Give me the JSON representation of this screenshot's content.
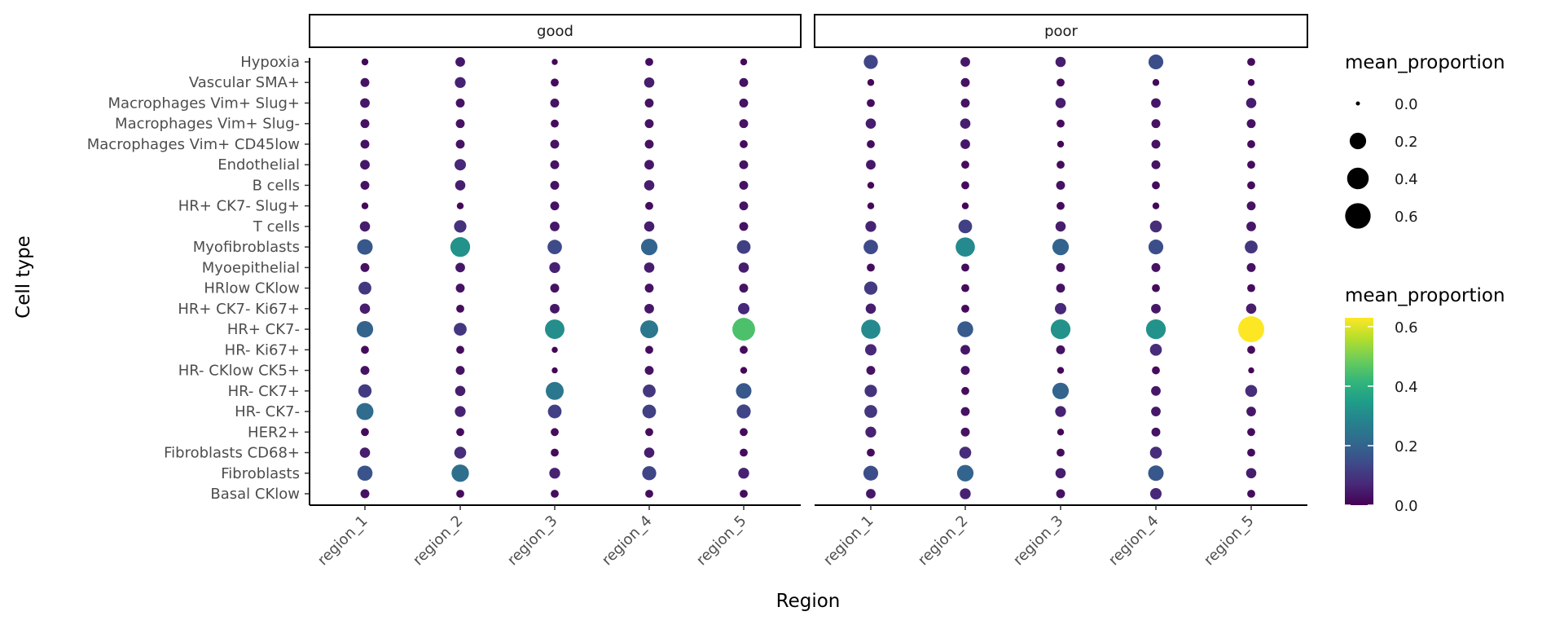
{
  "chart_data": {
    "type": "scatter",
    "subtype": "dot-plot-faceted",
    "xlabel": "Region",
    "ylabel": "Cell type",
    "facets": [
      "good",
      "poor"
    ],
    "categories_x": [
      "region_1",
      "region_2",
      "region_3",
      "region_4",
      "region_5"
    ],
    "categories_y": [
      "Hypoxia",
      "Vascular SMA+",
      "Macrophages Vim+ Slug+",
      "Macrophages Vim+ Slug-",
      "Macrophages Vim+ CD45low",
      "Endothelial",
      "B cells",
      "HR+ CK7- Slug+",
      "T cells",
      "Myofibroblasts",
      "Myoepithelial",
      "HRlow CKlow",
      "HR+ CK7- Ki67+",
      "HR+ CK7-",
      "HR- Ki67+",
      "HR- CKlow CK5+",
      "HR- CK7+",
      "HR- CK7-",
      "HER2+",
      "Fibroblasts CD68+",
      "Fibroblasts",
      "Basal CKlow"
    ],
    "values": {
      "good": [
        [
          0.01,
          0.04,
          0.005,
          0.02,
          0.01
        ],
        [
          0.03,
          0.06,
          0.02,
          0.05,
          0.03
        ],
        [
          0.04,
          0.03,
          0.03,
          0.03,
          0.03
        ],
        [
          0.03,
          0.03,
          0.02,
          0.03,
          0.03
        ],
        [
          0.03,
          0.03,
          0.03,
          0.03,
          0.02
        ],
        [
          0.04,
          0.07,
          0.03,
          0.04,
          0.03
        ],
        [
          0.03,
          0.05,
          0.03,
          0.05,
          0.03
        ],
        [
          0.01,
          0.01,
          0.03,
          0.02,
          0.03
        ],
        [
          0.05,
          0.09,
          0.04,
          0.05,
          0.03
        ],
        [
          0.17,
          0.32,
          0.14,
          0.2,
          0.12
        ],
        [
          0.03,
          0.04,
          0.06,
          0.05,
          0.05
        ],
        [
          0.1,
          0.03,
          0.03,
          0.03,
          0.03
        ],
        [
          0.05,
          0.02,
          0.04,
          0.04,
          0.07
        ],
        [
          0.2,
          0.1,
          0.31,
          0.25,
          0.45
        ],
        [
          0.02,
          0.02,
          0.005,
          0.02,
          0.02
        ],
        [
          0.03,
          0.03,
          0.005,
          0.03,
          0.01
        ],
        [
          0.11,
          0.05,
          0.25,
          0.1,
          0.17
        ],
        [
          0.22,
          0.06,
          0.12,
          0.12,
          0.13
        ],
        [
          0.02,
          0.02,
          0.02,
          0.02,
          0.02
        ],
        [
          0.05,
          0.08,
          0.02,
          0.05,
          0.02
        ],
        [
          0.16,
          0.23,
          0.06,
          0.13,
          0.06
        ],
        [
          0.03,
          0.02,
          0.02,
          0.02,
          0.02
        ]
      ],
      "poor": [
        [
          0.13,
          0.04,
          0.05,
          0.15,
          0.02
        ],
        [
          0.01,
          0.03,
          0.02,
          0.01,
          0.01
        ],
        [
          0.02,
          0.03,
          0.05,
          0.04,
          0.05
        ],
        [
          0.05,
          0.05,
          0.02,
          0.03,
          0.03
        ],
        [
          0.02,
          0.04,
          0.01,
          0.03,
          0.02
        ],
        [
          0.04,
          0.02,
          0.02,
          0.03,
          0.02
        ],
        [
          0.01,
          0.02,
          0.03,
          0.02,
          0.02
        ],
        [
          0.01,
          0.01,
          0.02,
          0.01,
          0.03
        ],
        [
          0.06,
          0.12,
          0.05,
          0.08,
          0.04
        ],
        [
          0.14,
          0.3,
          0.2,
          0.15,
          0.1
        ],
        [
          0.02,
          0.02,
          0.03,
          0.03,
          0.03
        ],
        [
          0.11,
          0.02,
          0.03,
          0.02,
          0.02
        ],
        [
          0.05,
          0.02,
          0.07,
          0.04,
          0.05
        ],
        [
          0.3,
          0.18,
          0.32,
          0.32,
          0.63
        ],
        [
          0.07,
          0.04,
          0.03,
          0.08,
          0.02
        ],
        [
          0.03,
          0.03,
          0.01,
          0.02,
          0.005
        ],
        [
          0.09,
          0.02,
          0.2,
          0.04,
          0.08
        ],
        [
          0.1,
          0.03,
          0.06,
          0.04,
          0.04
        ],
        [
          0.06,
          0.03,
          0.01,
          0.03,
          0.02
        ],
        [
          0.02,
          0.08,
          0.02,
          0.08,
          0.02
        ],
        [
          0.15,
          0.2,
          0.05,
          0.17,
          0.05
        ],
        [
          0.04,
          0.06,
          0.03,
          0.07,
          0.02
        ]
      ]
    },
    "size_legend": {
      "title": "mean_proportion",
      "breaks": [
        "0.0",
        "0.2",
        "0.4",
        "0.6"
      ]
    },
    "color_legend": {
      "title": "mean_proportion",
      "ticks": [
        "0.0",
        "0.2",
        "0.4",
        "0.6"
      ],
      "range": [
        0,
        0.63
      ],
      "palette": "viridis"
    },
    "grid": false
  }
}
